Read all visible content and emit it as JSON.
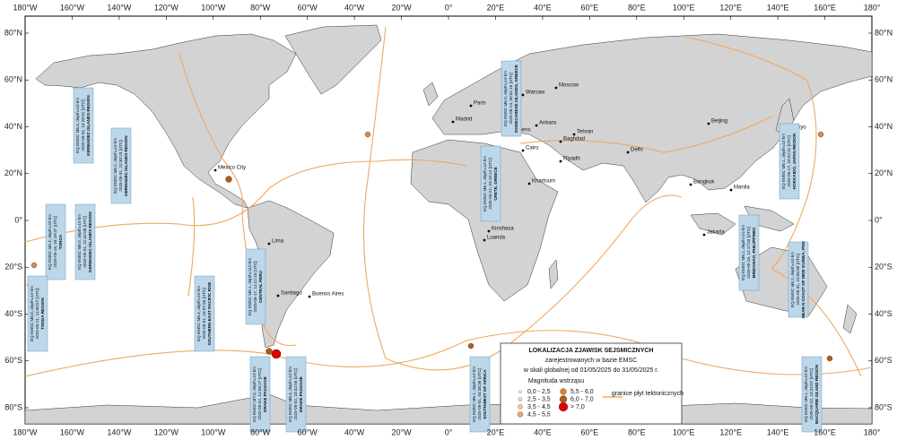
{
  "map": {
    "lon_labels": [
      "180°W",
      "160°W",
      "140°W",
      "120°W",
      "100°W",
      "80°W",
      "60°W",
      "40°W",
      "20°W",
      "0°",
      "20°E",
      "40°E",
      "60°E",
      "80°E",
      "100°E",
      "120°E",
      "140°E",
      "160°E",
      "180°"
    ],
    "lat_labels": [
      "80°N",
      "60°N",
      "40°N",
      "20°N",
      "0°",
      "20°S",
      "40°S",
      "60°S",
      "80°S"
    ],
    "cities": [
      "Moscow",
      "Warsaw",
      "Paris",
      "Madrid",
      "Ankara",
      "Athens",
      "Baghdad",
      "Tehran",
      "Cairo",
      "Riyadh",
      "Khartoum",
      "Kinshasa",
      "Luanda",
      "Beijing",
      "Tokyo",
      "Delhi",
      "Bangkok",
      "Manila",
      "Jakarta",
      "Mexico City",
      "Lima",
      "Santiago",
      "Buenos Aires"
    ],
    "annotations": [
      [
        "EQ EMSC M6.4, depth=10 km",
        "2025-05-31, 14:26:51 [UTC]",
        "KERMADEC ISLANDS REGION"
      ],
      [
        "EQ EMSC M6.2, depth=10 km",
        "2025-05-31, 22:30:23 [UTC]",
        "KERMADEC ISLANDS REGION"
      ],
      [
        "EQ EMSC M6.4, depth=20 km",
        "2025-05-16, 04:19:37 [UTC]",
        "TONGA"
      ],
      [
        "EQ EMSC M6.0, depth=10 km",
        "2025-05-01, 22:32:08 [UTC]",
        "KERMADEC ISLANDS REGION"
      ],
      [
        "EQ EMSC M6.0, depth=10 km",
        "2025-05-21, 11:00:57 [UTC]",
        "TONGA REGION"
      ],
      [
        "EQ EMSC M6.4, depth=10 km",
        "2025-05-01, 15:07:55 [UTC]",
        "SOUTHERN EAST PACIFIC RISE"
      ],
      [
        "EQ EMSC M6.1, depth=110 km",
        "2025-05-17, 11:22:15 [UTC]",
        "CENTRAL PERU"
      ],
      [
        "EQ EMSC M7.5, depth=10 km",
        "2025-05-02, 12:58:27 [UTC]",
        "DRAKE PASSAGE"
      ],
      [
        "EQ EMSC M6.4, depth=10 km",
        "2025-05-02, 23:42:55 [UTC]",
        "DRAKE PASSAGE"
      ],
      [
        "EQ EMSC M6.1, depth=10 km",
        "2025-05-22, 03:19:13 [UTC]",
        "CRETE, GREECE"
      ],
      [
        "EQ EMSC M6.0, depth=10 km",
        "2025-05-14, 00:51:15 [UTC]",
        "DODECANESE ISLANDS, GREECE"
      ],
      [
        "EQ EMSC M6.1, depth=10 km",
        "2025-05-01, 04:38:36 [UTC]",
        "SOUTHWEST OF AFRICA"
      ],
      [
        "EQ EMSC M6.2, depth=10 km",
        "2025-05-18, 12:17:03 [UTC]",
        "MINDANAO, PHILIPPINES"
      ],
      [
        "EQ EMSC M6.2, depth=10 km",
        "2025-05-31, 10:05:00 [UTC]",
        "NEAR N COAST OF NEW GUINEA, PNG"
      ],
      [
        "EQ EMSC M6.1, depth=10 km",
        "2025-05-17, 16:52:41 [UTC]",
        "HOKKAIDO, JAPAN REGION"
      ],
      [
        "EQ EMSC M6.1, depth=10 km",
        "2025-05-22, 13:32:57 [UTC]",
        "MACQUARIE ISLAND REGION"
      ]
    ],
    "legend": {
      "title": "LOKALIZACJA ZJAWISK SEJSMICZNYCH",
      "subtitle_1": "zarejestrowanych w bazie EMSC",
      "subtitle_2": "w skali globalnej od 01/05/2025 do 31/05/2025 r.",
      "magnitude_title": "Magnituda wstrząsu",
      "classes": [
        "0,0 - 2,5",
        "2,5 - 3,5",
        "3,5 - 4,5",
        "4,5 - 5,5",
        "5,5 - 6,0",
        "6,0 - 7,0",
        "> 7,0"
      ],
      "plates": "granice płyt tektonicznych"
    }
  }
}
